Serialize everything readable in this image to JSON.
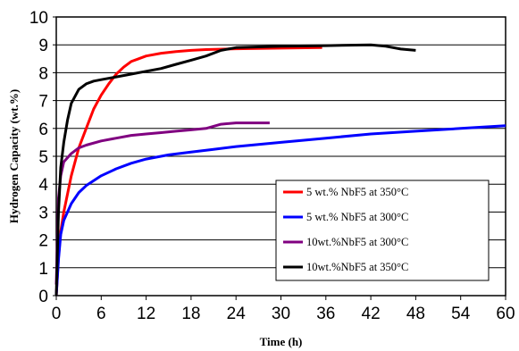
{
  "chart_data": {
    "type": "line",
    "title": "",
    "xlabel": "Time (h)",
    "ylabel": "Hydrogen Capacity (wt.%)",
    "xlim": [
      0,
      60
    ],
    "ylim": [
      0,
      10
    ],
    "x_ticks": [
      "0",
      "6",
      "12",
      "18",
      "24",
      "30",
      "36",
      "42",
      "48",
      "54",
      "60"
    ],
    "y_ticks": [
      "0",
      "1",
      "2",
      "3",
      "4",
      "5",
      "6",
      "7",
      "8",
      "9",
      "10"
    ],
    "grid": "horizontal",
    "legend_position": "bottom-right",
    "series": [
      {
        "name": "5 wt.% NbF5 at 350°C",
        "color": "#ff0000",
        "points": [
          [
            0,
            0
          ],
          [
            0.3,
            1.4
          ],
          [
            0.6,
            2.3
          ],
          [
            1,
            3.0
          ],
          [
            2,
            4.3
          ],
          [
            3,
            5.3
          ],
          [
            4,
            6.0
          ],
          [
            5,
            6.7
          ],
          [
            6,
            7.2
          ],
          [
            7,
            7.6
          ],
          [
            8,
            7.95
          ],
          [
            9,
            8.2
          ],
          [
            10,
            8.4
          ],
          [
            11,
            8.5
          ],
          [
            12,
            8.6
          ],
          [
            14,
            8.7
          ],
          [
            16,
            8.76
          ],
          [
            18,
            8.8
          ],
          [
            20,
            8.83
          ],
          [
            24,
            8.86
          ],
          [
            30,
            8.88
          ],
          [
            35.5,
            8.9
          ]
        ]
      },
      {
        "name": "5 wt.% NbF5 at 300°C",
        "color": "#0000ff",
        "points": [
          [
            0,
            0
          ],
          [
            0.3,
            1.3
          ],
          [
            0.6,
            2.2
          ],
          [
            1,
            2.7
          ],
          [
            2,
            3.3
          ],
          [
            3,
            3.7
          ],
          [
            4,
            3.95
          ],
          [
            6,
            4.3
          ],
          [
            8,
            4.55
          ],
          [
            10,
            4.75
          ],
          [
            12,
            4.9
          ],
          [
            15,
            5.05
          ],
          [
            18,
            5.15
          ],
          [
            21,
            5.25
          ],
          [
            24,
            5.35
          ],
          [
            30,
            5.5
          ],
          [
            36,
            5.65
          ],
          [
            42,
            5.8
          ],
          [
            48,
            5.9
          ],
          [
            54,
            6.0
          ],
          [
            60,
            6.1
          ]
        ]
      },
      {
        "name": "10wt.%NbF5 at 300°C",
        "color": "#800080",
        "points": [
          [
            0,
            0.4
          ],
          [
            0.3,
            3.5
          ],
          [
            0.6,
            4.3
          ],
          [
            1,
            4.8
          ],
          [
            2,
            5.1
          ],
          [
            3,
            5.3
          ],
          [
            4,
            5.4
          ],
          [
            6,
            5.55
          ],
          [
            8,
            5.65
          ],
          [
            10,
            5.75
          ],
          [
            12,
            5.8
          ],
          [
            14,
            5.85
          ],
          [
            16,
            5.9
          ],
          [
            18,
            5.95
          ],
          [
            20,
            6.0
          ],
          [
            22,
            6.15
          ],
          [
            24,
            6.2
          ],
          [
            26,
            6.2
          ],
          [
            28.5,
            6.2
          ]
        ]
      },
      {
        "name": "10wt.%NbF5 at 350°C",
        "color": "#000000",
        "points": [
          [
            0,
            0
          ],
          [
            0.3,
            3.0
          ],
          [
            0.6,
            4.6
          ],
          [
            1,
            5.5
          ],
          [
            1.5,
            6.3
          ],
          [
            2,
            6.9
          ],
          [
            3,
            7.4
          ],
          [
            4,
            7.6
          ],
          [
            5,
            7.7
          ],
          [
            6,
            7.75
          ],
          [
            8,
            7.85
          ],
          [
            10,
            7.95
          ],
          [
            12,
            8.05
          ],
          [
            14,
            8.15
          ],
          [
            16,
            8.3
          ],
          [
            18,
            8.45
          ],
          [
            20,
            8.6
          ],
          [
            22,
            8.8
          ],
          [
            24,
            8.9
          ],
          [
            30,
            8.95
          ],
          [
            36,
            8.97
          ],
          [
            42,
            9.0
          ],
          [
            44,
            8.95
          ],
          [
            46,
            8.85
          ],
          [
            48,
            8.8
          ]
        ]
      }
    ]
  }
}
